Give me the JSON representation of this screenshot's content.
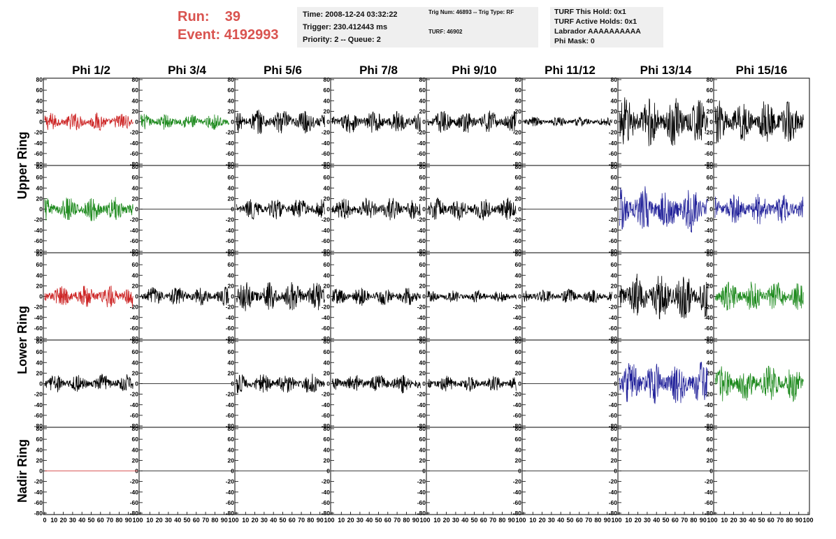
{
  "header": {
    "run_label": "Run:",
    "run_value": "39",
    "event_label": "Event:",
    "event_value": "4192993"
  },
  "info_time": {
    "time": "Time: 2008-12-24 03:32:22",
    "trigger": "Trigger: 230.412443 ms",
    "priority": "Priority: 2 -- Queue: 2"
  },
  "info_trig": {
    "trig": "Trig Num: 46893 -- Trig Type: RF",
    "turf": "TURF: 46902"
  },
  "info_turf": {
    "hold": "TURF This Hold: 0x1",
    "active": "TURF Active Holds: 0x1",
    "labrador": "Labrador AAAAAAAAAA",
    "phimask": "Phi Mask: 0"
  },
  "chart_data": {
    "type": "line",
    "columns": [
      "Phi 1/2",
      "Phi 3/4",
      "Phi 5/6",
      "Phi 7/8",
      "Phi 9/10",
      "Phi 11/12",
      "Phi 13/14",
      "Phi 15/16"
    ],
    "rings": [
      "Upper Ring",
      "Lower Ring",
      "Nadir Ring"
    ],
    "ylim": [
      -80,
      80
    ],
    "yticks": [
      -80,
      -60,
      -40,
      -20,
      0,
      20,
      40,
      60,
      80
    ],
    "xlim": [
      0,
      100
    ],
    "xticks": [
      0,
      10,
      20,
      30,
      40,
      50,
      60,
      70,
      80,
      90,
      100
    ],
    "colors": {
      "red": "#cc2222",
      "green": "#1e8a1e",
      "blue": "#22229a",
      "black": "#000000"
    },
    "waveform_type": "noise trace, approximate amplitude (data units) per panel",
    "panels": [
      {
        "row": 0,
        "col": 0,
        "color": "red",
        "amplitude": 18,
        "x_start": 0,
        "x_end": 95
      },
      {
        "row": 0,
        "col": 1,
        "color": "green",
        "amplitude": 16,
        "x_start": 0,
        "x_end": 95
      },
      {
        "row": 0,
        "col": 2,
        "color": "black",
        "amplitude": 25,
        "x_start": 0,
        "x_end": 95
      },
      {
        "row": 0,
        "col": 3,
        "color": "black",
        "amplitude": 22,
        "x_start": 0,
        "x_end": 95
      },
      {
        "row": 0,
        "col": 4,
        "color": "black",
        "amplitude": 22,
        "x_start": 0,
        "x_end": 95
      },
      {
        "row": 0,
        "col": 5,
        "color": "black",
        "amplitude": 10,
        "x_start": 0,
        "x_end": 95
      },
      {
        "row": 0,
        "col": 6,
        "color": "black",
        "amplitude": 48,
        "x_start": 0,
        "x_end": 95
      },
      {
        "row": 0,
        "col": 7,
        "color": "black",
        "amplitude": 42,
        "x_start": 0,
        "x_end": 95
      },
      {
        "row": 1,
        "col": 0,
        "color": "green",
        "amplitude": 24,
        "x_start": 0,
        "x_end": 95
      },
      {
        "row": 1,
        "col": 1,
        "color": "black",
        "amplitude": 0,
        "x_start": 0,
        "x_end": 100
      },
      {
        "row": 1,
        "col": 2,
        "color": "black",
        "amplitude": 20,
        "x_start": 0,
        "x_end": 95
      },
      {
        "row": 1,
        "col": 3,
        "color": "black",
        "amplitude": 22,
        "x_start": 0,
        "x_end": 95
      },
      {
        "row": 1,
        "col": 4,
        "color": "black",
        "amplitude": 22,
        "x_start": 0,
        "x_end": 95
      },
      {
        "row": 1,
        "col": 5,
        "color": "black",
        "amplitude": 0,
        "x_start": 0,
        "x_end": 100
      },
      {
        "row": 1,
        "col": 6,
        "color": "blue",
        "amplitude": 45,
        "x_start": 0,
        "x_end": 95
      },
      {
        "row": 1,
        "col": 7,
        "color": "blue",
        "amplitude": 30,
        "x_start": 0,
        "x_end": 95
      },
      {
        "row": 2,
        "col": 0,
        "color": "red",
        "amplitude": 22,
        "x_start": 0,
        "x_end": 95
      },
      {
        "row": 2,
        "col": 1,
        "color": "black",
        "amplitude": 18,
        "x_start": 0,
        "x_end": 95
      },
      {
        "row": 2,
        "col": 2,
        "color": "black",
        "amplitude": 28,
        "x_start": 0,
        "x_end": 95
      },
      {
        "row": 2,
        "col": 3,
        "color": "black",
        "amplitude": 18,
        "x_start": 0,
        "x_end": 95
      },
      {
        "row": 2,
        "col": 4,
        "color": "black",
        "amplitude": 12,
        "x_start": 0,
        "x_end": 95
      },
      {
        "row": 2,
        "col": 5,
        "color": "black",
        "amplitude": 14,
        "x_start": 0,
        "x_end": 95
      },
      {
        "row": 2,
        "col": 6,
        "color": "black",
        "amplitude": 45,
        "x_start": 0,
        "x_end": 95
      },
      {
        "row": 2,
        "col": 7,
        "color": "green",
        "amplitude": 30,
        "x_start": 0,
        "x_end": 95
      },
      {
        "row": 3,
        "col": 0,
        "color": "black",
        "amplitude": 18,
        "x_start": 0,
        "x_end": 95
      },
      {
        "row": 3,
        "col": 1,
        "color": "black",
        "amplitude": 0,
        "x_start": 0,
        "x_end": 100
      },
      {
        "row": 3,
        "col": 2,
        "color": "black",
        "amplitude": 20,
        "x_start": 0,
        "x_end": 95
      },
      {
        "row": 3,
        "col": 3,
        "color": "black",
        "amplitude": 18,
        "x_start": 0,
        "x_end": 95
      },
      {
        "row": 3,
        "col": 4,
        "color": "black",
        "amplitude": 15,
        "x_start": 0,
        "x_end": 95
      },
      {
        "row": 3,
        "col": 5,
        "color": "black",
        "amplitude": 0,
        "x_start": 0,
        "x_end": 100
      },
      {
        "row": 3,
        "col": 6,
        "color": "blue",
        "amplitude": 42,
        "x_start": 0,
        "x_end": 95
      },
      {
        "row": 3,
        "col": 7,
        "color": "green",
        "amplitude": 35,
        "x_start": 0,
        "x_end": 95
      },
      {
        "row": 4,
        "col": 0,
        "color": "red",
        "amplitude": 0,
        "x_start": 0,
        "x_end": 100
      },
      {
        "row": 4,
        "col": 1,
        "color": "black",
        "amplitude": 0,
        "x_start": 0,
        "x_end": 100
      },
      {
        "row": 4,
        "col": 2,
        "color": "black",
        "amplitude": 0,
        "x_start": 0,
        "x_end": 100
      },
      {
        "row": 4,
        "col": 3,
        "color": "black",
        "amplitude": 0,
        "x_start": 0,
        "x_end": 100
      },
      {
        "row": 4,
        "col": 4,
        "color": "black",
        "amplitude": 0,
        "x_start": 0,
        "x_end": 100
      },
      {
        "row": 4,
        "col": 5,
        "color": "black",
        "amplitude": 0,
        "x_start": 0,
        "x_end": 100
      },
      {
        "row": 4,
        "col": 6,
        "color": "black",
        "amplitude": 0,
        "x_start": 0,
        "x_end": 100
      },
      {
        "row": 4,
        "col": 7,
        "color": "black",
        "amplitude": 0,
        "x_start": 0,
        "x_end": 100
      }
    ]
  }
}
